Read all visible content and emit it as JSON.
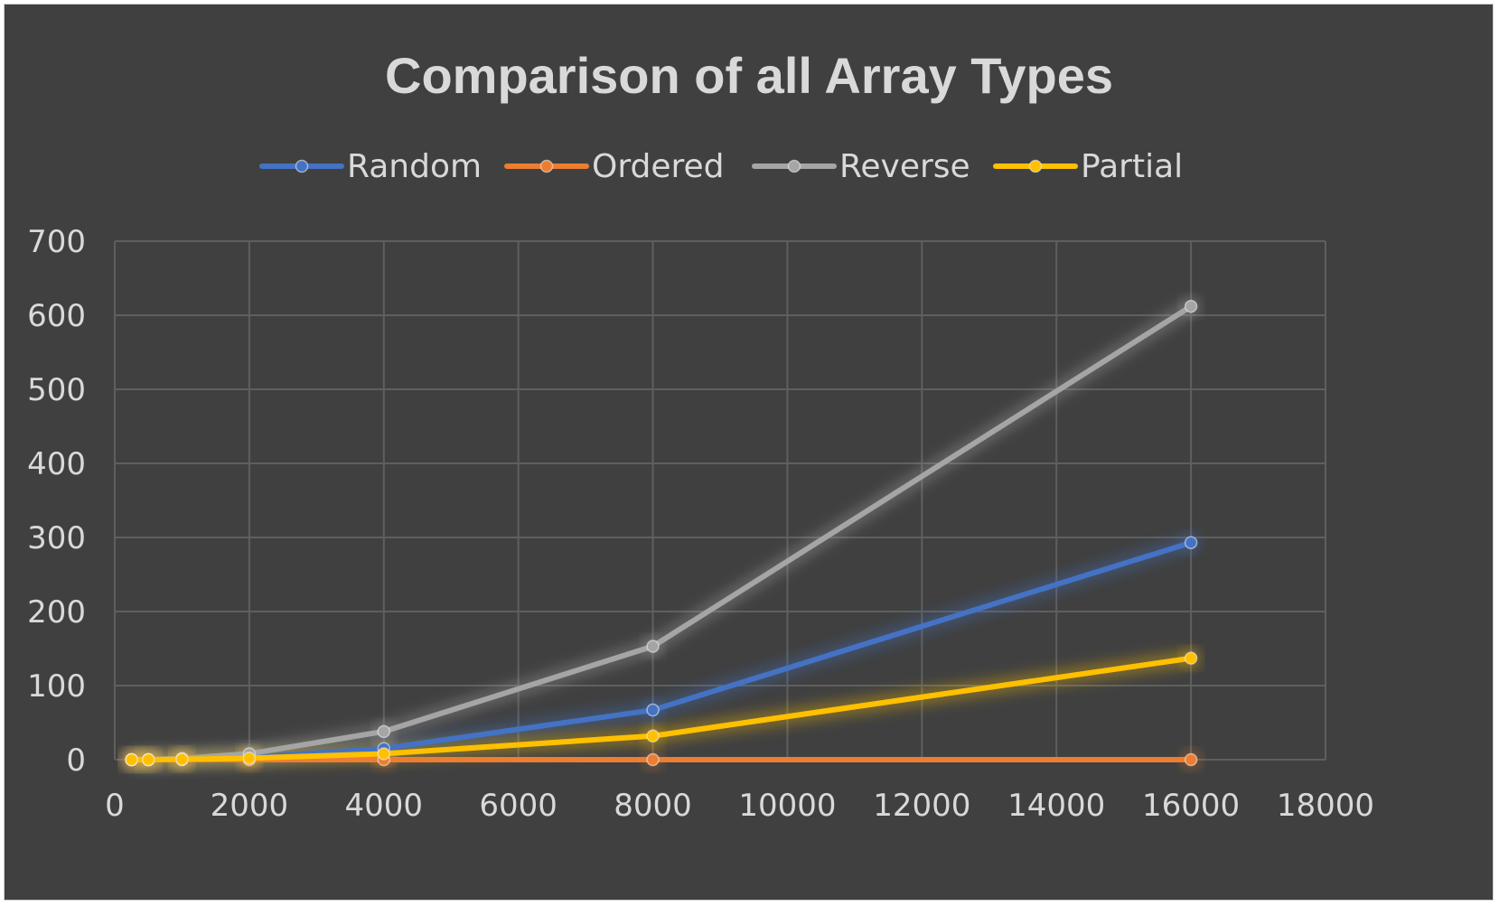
{
  "chart_data": {
    "type": "line",
    "title": "Comparison of all Array Types",
    "xlabel": "",
    "ylabel": "",
    "xlim": [
      0,
      18000
    ],
    "ylim": [
      0,
      700
    ],
    "x_ticks": [
      "0",
      "2000",
      "4000",
      "6000",
      "8000",
      "10000",
      "12000",
      "14000",
      "16000",
      "18000"
    ],
    "y_ticks": [
      "0",
      "100",
      "200",
      "300",
      "400",
      "500",
      "600",
      "700"
    ],
    "grid": true,
    "legend_position": "top",
    "series": [
      {
        "name": "Random",
        "color": "#4472c4",
        "points": [
          [
            250,
            0
          ],
          [
            500,
            0
          ],
          [
            1000,
            0.6
          ],
          [
            2000,
            3
          ],
          [
            4000,
            15
          ],
          [
            8000,
            67
          ],
          [
            16000,
            293
          ]
        ]
      },
      {
        "name": "Ordered",
        "color": "#ed7d31",
        "points": [
          [
            250,
            0
          ],
          [
            500,
            0
          ],
          [
            1000,
            0
          ],
          [
            2000,
            0
          ],
          [
            4000,
            0
          ],
          [
            8000,
            0
          ],
          [
            16000,
            0
          ]
        ]
      },
      {
        "name": "Reverse",
        "color": "#a5a5a5",
        "points": [
          [
            250,
            0
          ],
          [
            500,
            0
          ],
          [
            1000,
            1.5
          ],
          [
            2000,
            8
          ],
          [
            4000,
            38
          ],
          [
            8000,
            153
          ],
          [
            16000,
            612
          ]
        ]
      },
      {
        "name": "Partial",
        "color": "#ffc000",
        "points": [
          [
            250,
            0
          ],
          [
            500,
            0
          ],
          [
            1000,
            0.5
          ],
          [
            2000,
            2
          ],
          [
            4000,
            8
          ],
          [
            8000,
            32
          ],
          [
            16000,
            137
          ]
        ]
      }
    ]
  }
}
